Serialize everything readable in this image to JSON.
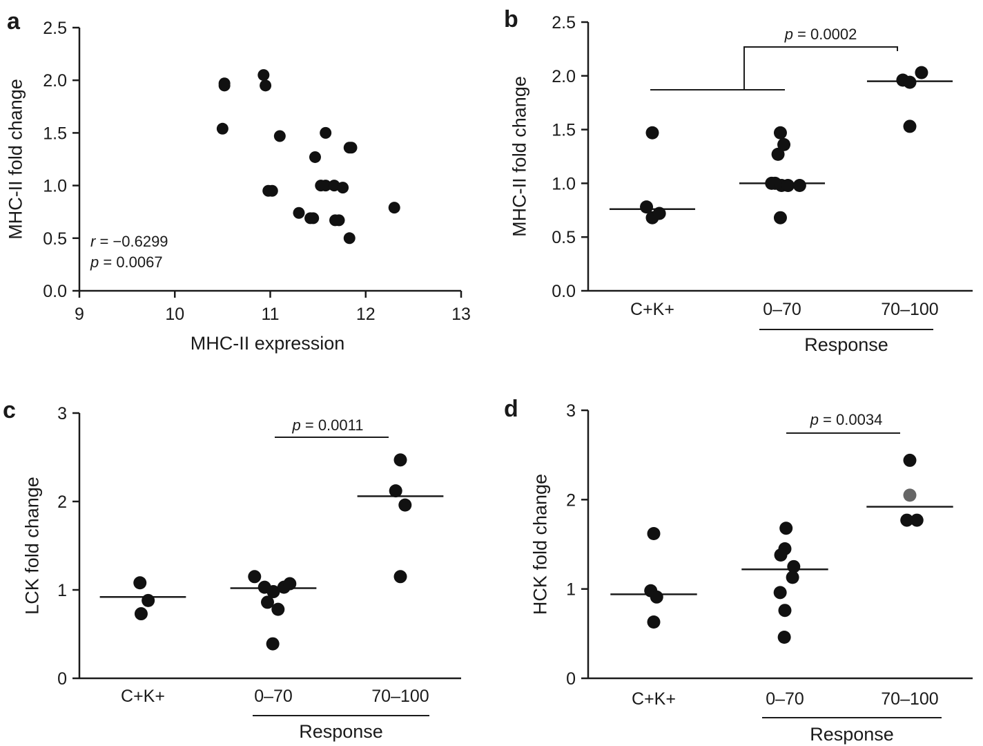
{
  "figure": {
    "panels": [
      "a",
      "b",
      "c",
      "d"
    ]
  },
  "chart_data": [
    {
      "id": "a",
      "panel_label": "a",
      "type": "scatter",
      "xlabel": "MHC-II expression",
      "ylabel": "MHC-II fold change",
      "xlim": [
        9,
        13
      ],
      "ylim": [
        0.0,
        2.5
      ],
      "xticks": [
        "9",
        "10",
        "11",
        "12",
        "13"
      ],
      "yticks": [
        "0.0",
        "0.5",
        "1.0",
        "1.5",
        "2.0",
        "2.5"
      ],
      "points": [
        {
          "x": 10.52,
          "y": 1.97
        },
        {
          "x": 10.52,
          "y": 1.95
        },
        {
          "x": 10.5,
          "y": 1.54
        },
        {
          "x": 10.93,
          "y": 2.05
        },
        {
          "x": 10.95,
          "y": 1.95
        },
        {
          "x": 11.1,
          "y": 1.47
        },
        {
          "x": 10.98,
          "y": 0.95
        },
        {
          "x": 11.02,
          "y": 0.95
        },
        {
          "x": 11.3,
          "y": 0.74
        },
        {
          "x": 11.42,
          "y": 0.69
        },
        {
          "x": 11.45,
          "y": 0.69
        },
        {
          "x": 11.47,
          "y": 1.27
        },
        {
          "x": 11.58,
          "y": 1.5
        },
        {
          "x": 11.53,
          "y": 1.0
        },
        {
          "x": 11.58,
          "y": 1.0
        },
        {
          "x": 11.67,
          "y": 1.0
        },
        {
          "x": 11.76,
          "y": 0.98
        },
        {
          "x": 11.72,
          "y": 0.67
        },
        {
          "x": 11.68,
          "y": 0.67
        },
        {
          "x": 11.83,
          "y": 1.36
        },
        {
          "x": 11.85,
          "y": 1.36
        },
        {
          "x": 11.83,
          "y": 0.5
        },
        {
          "x": 12.3,
          "y": 0.79
        }
      ],
      "annotations": {
        "r_label": "r",
        "r_value": " = −0.6299",
        "p_label": "p",
        "p_value": " = 0.0067"
      }
    },
    {
      "id": "b",
      "panel_label": "b",
      "type": "scatter",
      "ylabel": "MHC-II fold change",
      "group_label": "Response",
      "categories": [
        "C+K+",
        "0–70",
        "70–100"
      ],
      "ylim": [
        0.0,
        2.5
      ],
      "yticks": [
        "0.0",
        "0.5",
        "1.0",
        "1.5",
        "2.0",
        "2.5"
      ],
      "groups": [
        {
          "name": "C+K+",
          "mean": 0.76,
          "points": [
            {
              "dx": 0.0,
              "y": 1.47
            },
            {
              "dx": -0.1,
              "y": 0.78
            },
            {
              "dx": 0.0,
              "y": 0.68
            },
            {
              "dx": 0.12,
              "y": 0.72
            }
          ]
        },
        {
          "name": "0–70",
          "mean": 1.0,
          "points": [
            {
              "dx": -0.03,
              "y": 1.47
            },
            {
              "dx": 0.03,
              "y": 1.36
            },
            {
              "dx": -0.07,
              "y": 1.27
            },
            {
              "dx": -0.18,
              "y": 1.0
            },
            {
              "dx": -0.12,
              "y": 1.0
            },
            {
              "dx": -0.01,
              "y": 0.98
            },
            {
              "dx": 0.1,
              "y": 0.98
            },
            {
              "dx": 0.3,
              "y": 0.98
            },
            {
              "dx": -0.03,
              "y": 0.68
            }
          ]
        },
        {
          "name": "70–100",
          "mean": 1.95,
          "points": [
            {
              "dx": -0.12,
              "y": 1.96
            },
            {
              "dx": 0.0,
              "y": 1.94
            },
            {
              "dx": 0.2,
              "y": 2.03
            },
            {
              "dx": 0.0,
              "y": 1.53
            }
          ]
        }
      ],
      "significance": {
        "p_label": "p",
        "p_value": " = 0.0002",
        "left_span": [
          "C+K+",
          "0–70"
        ],
        "right": "70–100"
      }
    },
    {
      "id": "c",
      "panel_label": "c",
      "type": "scatter",
      "ylabel": "LCK fold change",
      "group_label": "Response",
      "categories": [
        "C+K+",
        "0–70",
        "70–100"
      ],
      "ylim": [
        0,
        3
      ],
      "yticks": [
        "0",
        "1",
        "2",
        "3"
      ],
      "groups": [
        {
          "name": "C+K+",
          "mean": 0.92,
          "points": [
            {
              "dx": -0.05,
              "y": 1.08
            },
            {
              "dx": 0.09,
              "y": 0.88
            },
            {
              "dx": -0.03,
              "y": 0.73
            }
          ]
        },
        {
          "name": "0–70",
          "mean": 1.02,
          "points": [
            {
              "dx": -0.32,
              "y": 1.15
            },
            {
              "dx": -0.15,
              "y": 1.03
            },
            {
              "dx": 0.0,
              "y": 0.98
            },
            {
              "dx": 0.18,
              "y": 1.03
            },
            {
              "dx": 0.28,
              "y": 1.07
            },
            {
              "dx": -0.1,
              "y": 0.86
            },
            {
              "dx": 0.08,
              "y": 0.78
            },
            {
              "dx": -0.01,
              "y": 0.39
            }
          ]
        },
        {
          "name": "70–100",
          "mean": 2.06,
          "points": [
            {
              "dx": 0.0,
              "y": 2.47
            },
            {
              "dx": -0.08,
              "y": 2.12
            },
            {
              "dx": 0.08,
              "y": 1.96
            },
            {
              "dx": 0.0,
              "y": 1.15
            }
          ]
        }
      ],
      "significance": {
        "p_label": "p",
        "p_value": " = 0.0011",
        "from": "0–70",
        "to": "70–100"
      }
    },
    {
      "id": "d",
      "panel_label": "d",
      "type": "scatter",
      "ylabel": "HCK fold change",
      "group_label": "Response",
      "categories": [
        "C+K+",
        "0–70",
        "70–100"
      ],
      "ylim": [
        0,
        3
      ],
      "yticks": [
        "0",
        "1",
        "2",
        "3"
      ],
      "groups": [
        {
          "name": "C+K+",
          "mean": 0.94,
          "points": [
            {
              "dx": 0.0,
              "y": 1.62
            },
            {
              "dx": -0.05,
              "y": 0.98
            },
            {
              "dx": 0.05,
              "y": 0.91
            },
            {
              "dx": 0.0,
              "y": 0.63
            }
          ]
        },
        {
          "name": "0–70",
          "mean": 1.22,
          "points": [
            {
              "dx": 0.02,
              "y": 1.68
            },
            {
              "dx": 0.0,
              "y": 1.45
            },
            {
              "dx": -0.07,
              "y": 1.38
            },
            {
              "dx": 0.15,
              "y": 1.25
            },
            {
              "dx": 0.13,
              "y": 1.13
            },
            {
              "dx": -0.08,
              "y": 0.96
            },
            {
              "dx": 0.0,
              "y": 0.76
            },
            {
              "dx": -0.01,
              "y": 0.46
            }
          ]
        },
        {
          "name": "70–100",
          "mean": 1.92,
          "points": [
            {
              "dx": 0.0,
              "y": 2.44
            },
            {
              "dx": 0.0,
              "y": 2.05,
              "color": "#666666"
            },
            {
              "dx": -0.05,
              "y": 1.77
            },
            {
              "dx": 0.12,
              "y": 1.77
            }
          ]
        }
      ],
      "significance": {
        "p_label": "p",
        "p_value": " = 0.0034",
        "from": "0–70",
        "to": "70–100"
      }
    }
  ],
  "colors": {
    "ink": "#1a1a1a",
    "dot": "#111111"
  }
}
